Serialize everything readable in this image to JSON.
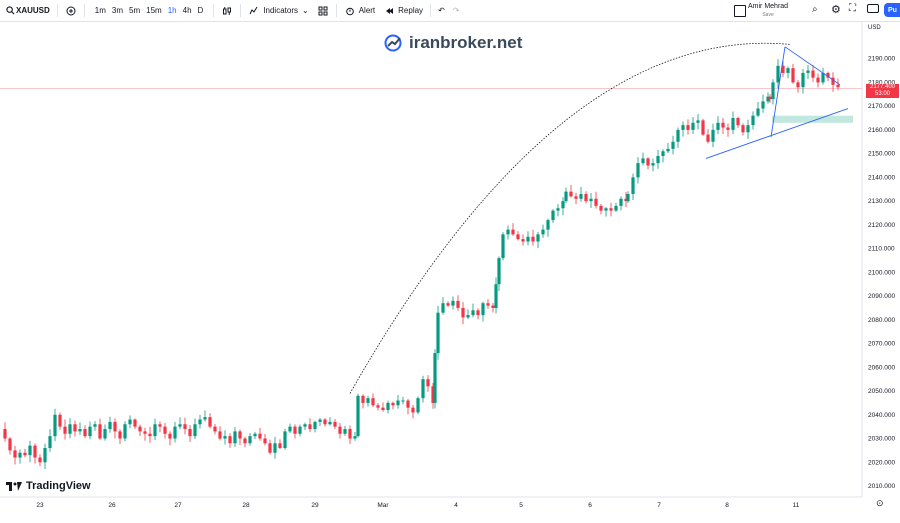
{
  "toolbar": {
    "symbol": "XAUUSD",
    "timeframes": [
      "1m",
      "3m",
      "5m",
      "15m",
      "1h",
      "4h",
      "D"
    ],
    "active_timeframe": "1h",
    "indicators_label": "Indicators",
    "alert_label": "Alert",
    "replay_label": "Replay",
    "user_name": "Amir Mehrad",
    "user_status": "Save",
    "publish_label": "Pu"
  },
  "watermark": "iranbroker.net",
  "brand": "TradingView",
  "currency_label": "USD",
  "current_price": "2177.400",
  "countdown": "53:00",
  "colors": {
    "up": "#089981",
    "down": "#f23645",
    "trendline": "#2962ff",
    "zone": "#a8ddd2",
    "accent": "#2962ff"
  },
  "chart_data": {
    "type": "candlestick",
    "symbol": "XAUUSD",
    "timeframe": "1h",
    "y_ticks": [
      2010,
      2020,
      2030,
      2040,
      2050,
      2060,
      2070,
      2080,
      2090,
      2100,
      2110,
      2120,
      2130,
      2140,
      2150,
      2160,
      2170,
      2180,
      2190
    ],
    "y_tick_labels": [
      "2010.000",
      "2020.000",
      "2030.000",
      "2040.000",
      "2050.000",
      "2060.000",
      "2070.000",
      "2080.000",
      "2090.000",
      "2100.000",
      "2110.000",
      "2120.000",
      "2130.000",
      "2140.000",
      "2150.000",
      "2160.000",
      "2170.000",
      "2180.000",
      "2190.000"
    ],
    "x_labels": [
      "23",
      "26",
      "27",
      "28",
      "29",
      "Mar",
      "4",
      "5",
      "6",
      "7",
      "8",
      "11"
    ],
    "ylim": [
      2006,
      2198
    ],
    "close_path": [
      [
        0,
        2034
      ],
      [
        5,
        2030
      ],
      [
        10,
        2025
      ],
      [
        15,
        2022
      ],
      [
        20,
        2024
      ],
      [
        25,
        2023
      ],
      [
        30,
        2027
      ],
      [
        35,
        2022
      ],
      [
        40,
        2020
      ],
      [
        45,
        2026
      ],
      [
        50,
        2031
      ],
      [
        55,
        2040
      ],
      [
        60,
        2035
      ],
      [
        65,
        2032
      ],
      [
        70,
        2036
      ],
      [
        75,
        2033
      ],
      [
        80,
        2034
      ],
      [
        85,
        2031
      ],
      [
        90,
        2035
      ],
      [
        95,
        2036
      ],
      [
        100,
        2030
      ],
      [
        105,
        2034
      ],
      [
        110,
        2037
      ],
      [
        115,
        2033
      ],
      [
        120,
        2030
      ],
      [
        125,
        2036
      ],
      [
        130,
        2038
      ],
      [
        135,
        2035
      ],
      [
        140,
        2033
      ],
      [
        145,
        2032
      ],
      [
        150,
        2031
      ],
      [
        155,
        2036
      ],
      [
        160,
        2035
      ],
      [
        165,
        2032
      ],
      [
        170,
        2030
      ],
      [
        175,
        2035
      ],
      [
        180,
        2036
      ],
      [
        185,
        2034
      ],
      [
        190,
        2031
      ],
      [
        195,
        2036
      ],
      [
        200,
        2038
      ],
      [
        205,
        2039
      ],
      [
        210,
        2035
      ],
      [
        215,
        2033
      ],
      [
        220,
        2030
      ],
      [
        225,
        2031
      ],
      [
        230,
        2028
      ],
      [
        235,
        2033
      ],
      [
        240,
        2030
      ],
      [
        245,
        2028
      ],
      [
        250,
        2031
      ],
      [
        255,
        2032
      ],
      [
        260,
        2030
      ],
      [
        265,
        2028
      ],
      [
        270,
        2024
      ],
      [
        275,
        2028
      ],
      [
        280,
        2026
      ],
      [
        285,
        2033
      ],
      [
        290,
        2035
      ],
      [
        295,
        2032
      ],
      [
        300,
        2035
      ],
      [
        305,
        2036
      ],
      [
        310,
        2034
      ],
      [
        315,
        2037
      ],
      [
        320,
        2038
      ],
      [
        325,
        2036
      ],
      [
        330,
        2037
      ],
      [
        335,
        2035
      ],
      [
        340,
        2032
      ],
      [
        345,
        2034
      ],
      [
        350,
        2030
      ],
      [
        355,
        2031
      ],
      [
        358,
        2048
      ],
      [
        363,
        2045
      ],
      [
        368,
        2047
      ],
      [
        373,
        2044
      ],
      [
        378,
        2043
      ],
      [
        383,
        2042
      ],
      [
        388,
        2045
      ],
      [
        393,
        2044
      ],
      [
        398,
        2046
      ],
      [
        403,
        2046
      ],
      [
        408,
        2043
      ],
      [
        413,
        2041
      ],
      [
        418,
        2047
      ],
      [
        423,
        2055
      ],
      [
        428,
        2052
      ],
      [
        433,
        2045
      ],
      [
        435,
        2066
      ],
      [
        438,
        2083
      ],
      [
        443,
        2087
      ],
      [
        448,
        2086
      ],
      [
        453,
        2088
      ],
      [
        458,
        2085
      ],
      [
        463,
        2081
      ],
      [
        468,
        2082
      ],
      [
        473,
        2084
      ],
      [
        478,
        2082
      ],
      [
        483,
        2087
      ],
      [
        488,
        2086
      ],
      [
        493,
        2085
      ],
      [
        496,
        2095
      ],
      [
        499,
        2106
      ],
      [
        503,
        2116
      ],
      [
        508,
        2118
      ],
      [
        513,
        2116
      ],
      [
        518,
        2114
      ],
      [
        523,
        2113
      ],
      [
        528,
        2115
      ],
      [
        533,
        2113
      ],
      [
        538,
        2116
      ],
      [
        543,
        2118
      ],
      [
        548,
        2122
      ],
      [
        553,
        2126
      ],
      [
        558,
        2127
      ],
      [
        563,
        2130
      ],
      [
        566,
        2134
      ],
      [
        571,
        2132
      ],
      [
        576,
        2131
      ],
      [
        581,
        2133
      ],
      [
        586,
        2130
      ],
      [
        591,
        2131
      ],
      [
        596,
        2128
      ],
      [
        601,
        2126
      ],
      [
        606,
        2127
      ],
      [
        611,
        2126
      ],
      [
        616,
        2128
      ],
      [
        621,
        2131
      ],
      [
        626,
        2130
      ],
      [
        628,
        2133
      ],
      [
        633,
        2140
      ],
      [
        638,
        2146
      ],
      [
        643,
        2148
      ],
      [
        648,
        2145
      ],
      [
        653,
        2146
      ],
      [
        658,
        2149
      ],
      [
        663,
        2151
      ],
      [
        668,
        2152
      ],
      [
        673,
        2155
      ],
      [
        678,
        2160
      ],
      [
        683,
        2162
      ],
      [
        688,
        2160
      ],
      [
        693,
        2163
      ],
      [
        698,
        2164
      ],
      [
        703,
        2158
      ],
      [
        708,
        2155
      ],
      [
        713,
        2160
      ],
      [
        718,
        2163
      ],
      [
        723,
        2161
      ],
      [
        728,
        2160
      ],
      [
        733,
        2165
      ],
      [
        738,
        2162
      ],
      [
        743,
        2159
      ],
      [
        748,
        2162
      ],
      [
        753,
        2166
      ],
      [
        758,
        2169
      ],
      [
        763,
        2172
      ],
      [
        768,
        2174
      ],
      [
        770,
        2173
      ],
      [
        773,
        2180
      ],
      [
        778,
        2187
      ],
      [
        783,
        2184
      ],
      [
        788,
        2186
      ],
      [
        793,
        2180
      ],
      [
        798,
        2178
      ],
      [
        803,
        2184
      ],
      [
        808,
        2185
      ],
      [
        813,
        2182
      ],
      [
        818,
        2180
      ],
      [
        823,
        2184
      ],
      [
        828,
        2182
      ],
      [
        833,
        2179
      ],
      [
        838,
        2178
      ]
    ],
    "annotations": {
      "arc": {
        "from": [
          350,
          2049
        ],
        "peak": [
          790,
          2196
        ]
      },
      "triangle_upper": {
        "from": [
          785,
          2195
        ],
        "to": [
          840,
          2179
        ]
      },
      "triangle_lower": {
        "from": [
          706,
          2148
        ],
        "to": [
          848,
          2169
        ]
      },
      "support_zone": {
        "x_from": 772,
        "x_to": 853,
        "y_from": 2163,
        "y_to": 2166
      },
      "price_line": 2177.4
    },
    "grid": false,
    "legend": "none"
  }
}
